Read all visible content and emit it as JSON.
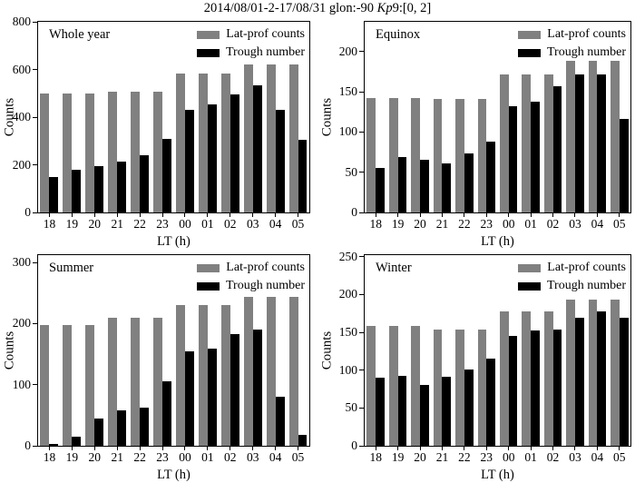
{
  "title": {
    "part1": "2014/08/01-2-17/08/31 glon:-90 ",
    "kp": "Kp",
    "part2": "9:[0, 2]"
  },
  "colors": {
    "lat_prof": "#808080",
    "trough": "#000000",
    "axis": "#000000",
    "background": "#ffffff"
  },
  "xlabel": "LT (h)",
  "ylabel": "Counts",
  "categories": [
    "18",
    "19",
    "20",
    "21",
    "22",
    "23",
    "00",
    "01",
    "02",
    "03",
    "04",
    "05"
  ],
  "chart_data": [
    {
      "type": "bar",
      "title": "Whole year",
      "xlabel": "LT (h)",
      "ylabel": "Counts",
      "ylim": [
        0,
        800
      ],
      "yticks": [
        0,
        200,
        400,
        600,
        800
      ],
      "grid": false,
      "legend_position": "upper right",
      "categories": [
        "18",
        "19",
        "20",
        "21",
        "22",
        "23",
        "00",
        "01",
        "02",
        "03",
        "04",
        "05"
      ],
      "series": [
        {
          "name": "Lat-prof counts",
          "color": "#808080",
          "values": [
            500,
            500,
            500,
            507,
            507,
            507,
            583,
            583,
            583,
            622,
            622,
            622
          ]
        },
        {
          "name": "Trough number",
          "color": "#000000",
          "values": [
            150,
            180,
            195,
            212,
            240,
            310,
            432,
            453,
            497,
            533,
            432,
            305
          ]
        }
      ]
    },
    {
      "type": "bar",
      "title": "Equinox",
      "xlabel": "LT (h)",
      "ylabel": "Counts",
      "ylim": [
        0,
        237
      ],
      "yticks": [
        0,
        50,
        100,
        150,
        200
      ],
      "grid": false,
      "legend_position": "upper right",
      "categories": [
        "18",
        "19",
        "20",
        "21",
        "22",
        "23",
        "00",
        "01",
        "02",
        "03",
        "04",
        "05"
      ],
      "series": [
        {
          "name": "Lat-prof counts",
          "color": "#808080",
          "values": [
            142,
            142,
            142,
            141,
            141,
            141,
            171,
            171,
            171,
            188,
            188,
            188
          ]
        },
        {
          "name": "Trough number",
          "color": "#000000",
          "values": [
            55,
            69,
            66,
            61,
            73,
            88,
            132,
            138,
            157,
            172,
            171,
            116
          ]
        }
      ]
    },
    {
      "type": "bar",
      "title": "Summer",
      "xlabel": "LT (h)",
      "ylabel": "Counts",
      "ylim": [
        0,
        312
      ],
      "yticks": [
        0,
        100,
        200,
        300
      ],
      "grid": false,
      "legend_position": "upper right",
      "categories": [
        "18",
        "19",
        "20",
        "21",
        "22",
        "23",
        "00",
        "01",
        "02",
        "03",
        "04",
        "05"
      ],
      "series": [
        {
          "name": "Lat-prof counts",
          "color": "#808080",
          "values": [
            198,
            198,
            198,
            210,
            210,
            210,
            231,
            231,
            231,
            243,
            243,
            243
          ]
        },
        {
          "name": "Trough number",
          "color": "#000000",
          "values": [
            3,
            15,
            45,
            58,
            63,
            106,
            155,
            159,
            183,
            190,
            80,
            18
          ]
        }
      ]
    },
    {
      "type": "bar",
      "title": "Winter",
      "xlabel": "LT (h)",
      "ylabel": "Counts",
      "ylim": [
        0,
        252
      ],
      "yticks": [
        0,
        50,
        100,
        150,
        200,
        250
      ],
      "grid": false,
      "legend_position": "upper right",
      "categories": [
        "18",
        "19",
        "20",
        "21",
        "22",
        "23",
        "00",
        "01",
        "02",
        "03",
        "04",
        "05"
      ],
      "series": [
        {
          "name": "Lat-prof counts",
          "color": "#808080",
          "values": [
            158,
            158,
            158,
            154,
            154,
            154,
            178,
            178,
            178,
            193,
            193,
            193
          ]
        },
        {
          "name": "Trough number",
          "color": "#000000",
          "values": [
            90,
            92,
            80,
            91,
            101,
            115,
            145,
            153,
            154,
            169,
            178,
            169
          ]
        }
      ]
    }
  ]
}
